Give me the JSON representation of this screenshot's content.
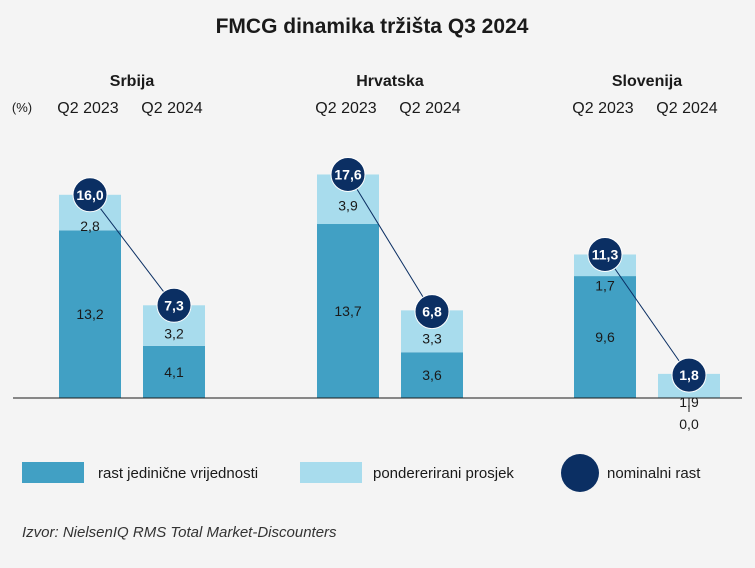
{
  "chart_data": {
    "type": "bar",
    "title": "FMCG dinamika tržišta Q3 2024",
    "unit_label": "(%)",
    "groups": [
      "Srbija",
      "Hrvatska",
      "Slovenija"
    ],
    "periods": [
      "Q2 2023",
      "Q2 2024"
    ],
    "series": [
      {
        "name": "rast jedinične vrijednosti",
        "color": "#41a0c4",
        "values": [
          [
            13.2,
            4.1
          ],
          [
            13.7,
            3.6
          ],
          [
            9.6,
            0.0
          ]
        ]
      },
      {
        "name": "pondererirani prosjek",
        "color": "#a8dced",
        "values": [
          [
            2.8,
            3.2
          ],
          [
            3.9,
            3.3
          ],
          [
            1.7,
            1.9
          ]
        ]
      },
      {
        "name": "nominalni rast",
        "color": "#0b2f63",
        "values": [
          [
            16.0,
            7.3
          ],
          [
            17.6,
            6.8
          ],
          [
            11.3,
            1.8
          ]
        ]
      }
    ],
    "value_labels": {
      "unit": [
        [
          "13,2",
          "4,1"
        ],
        [
          "13,7",
          "3,6"
        ],
        [
          "9,6",
          "0,0"
        ]
      ],
      "avg": [
        [
          "2,8",
          "3,2"
        ],
        [
          "3,9",
          "3,3"
        ],
        [
          "1,7",
          "1,9"
        ]
      ],
      "nominal": [
        [
          "16,0",
          "7,3"
        ],
        [
          "17,6",
          "6,8"
        ],
        [
          "11,3",
          "1,8"
        ]
      ]
    },
    "ylim": [
      0,
      20
    ],
    "legend_position": "bottom"
  },
  "source": "Izvor: NielsenIQ RMS Total Market-Discounters"
}
